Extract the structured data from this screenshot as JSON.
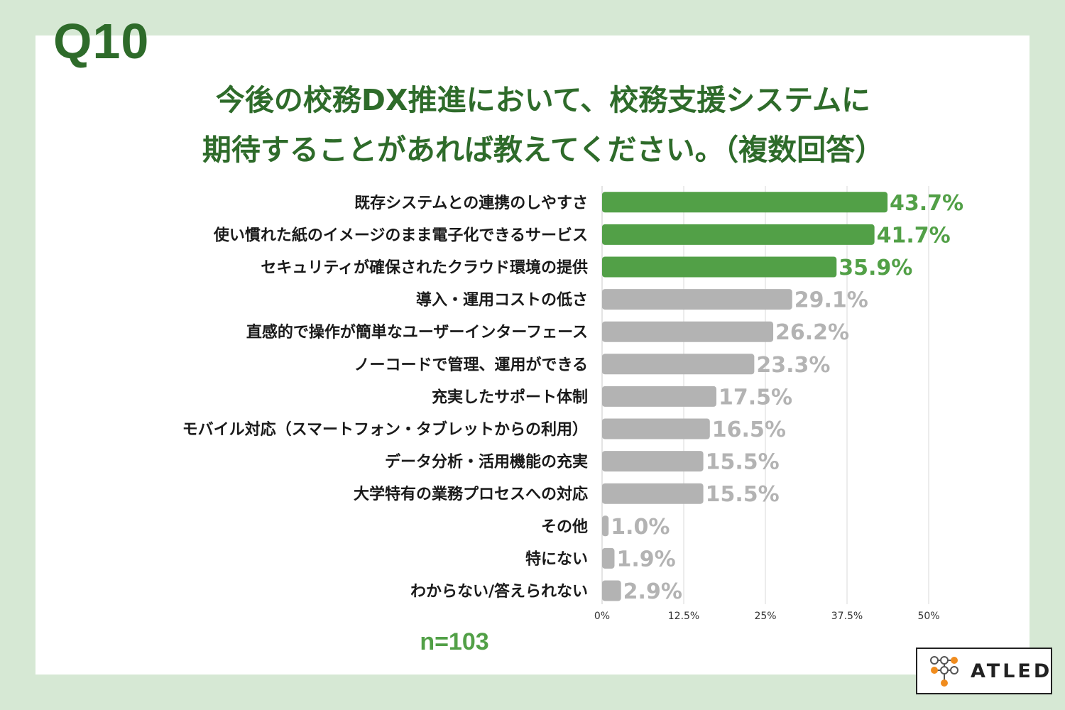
{
  "question_number": "Q10",
  "title_line1": "今後の校務DX推進において、校務支援システムに",
  "title_line2": "期待することがあれば教えてください。（複数回答）",
  "sample_size": "n=103",
  "logo_text": "ATLED",
  "colors": {
    "highlight": "#52a047",
    "normal": "#b3b3b3",
    "title": "#2e6b2a",
    "background": "#d6e8d4"
  },
  "chart_data": {
    "type": "bar",
    "orientation": "horizontal",
    "categories": [
      "既存システムとの連携のしやすさ",
      "使い慣れた紙のイメージのまま電子化できるサービス",
      "セキュリティが確保されたクラウド環境の提供",
      "導入・運用コストの低さ",
      "直感的で操作が簡単なユーザーインターフェース",
      "ノーコードで管理、運用ができる",
      "充実したサポート体制",
      "モバイル対応（スマートフォン・タブレットからの利用）",
      "データ分析・活用機能の充実",
      "大学特有の業務プロセスへの対応",
      "その他",
      "特にない",
      "わからない/答えられない"
    ],
    "values": [
      43.7,
      41.7,
      35.9,
      29.1,
      26.2,
      23.3,
      17.5,
      16.5,
      15.5,
      15.5,
      1.0,
      1.9,
      2.9
    ],
    "value_labels": [
      "43.7%",
      "41.7%",
      "35.9%",
      "29.1%",
      "26.2%",
      "23.3%",
      "17.5%",
      "16.5%",
      "15.5%",
      "15.5%",
      "1.0%",
      "1.9%",
      "2.9%"
    ],
    "highlighted_top": 3,
    "xlim": [
      0,
      50
    ],
    "ticks": [
      0,
      12.5,
      25,
      37.5,
      50
    ],
    "tick_labels": [
      "0%",
      "12.5%",
      "25%",
      "37.5%",
      "50%"
    ],
    "grid": true,
    "legend": "none"
  }
}
